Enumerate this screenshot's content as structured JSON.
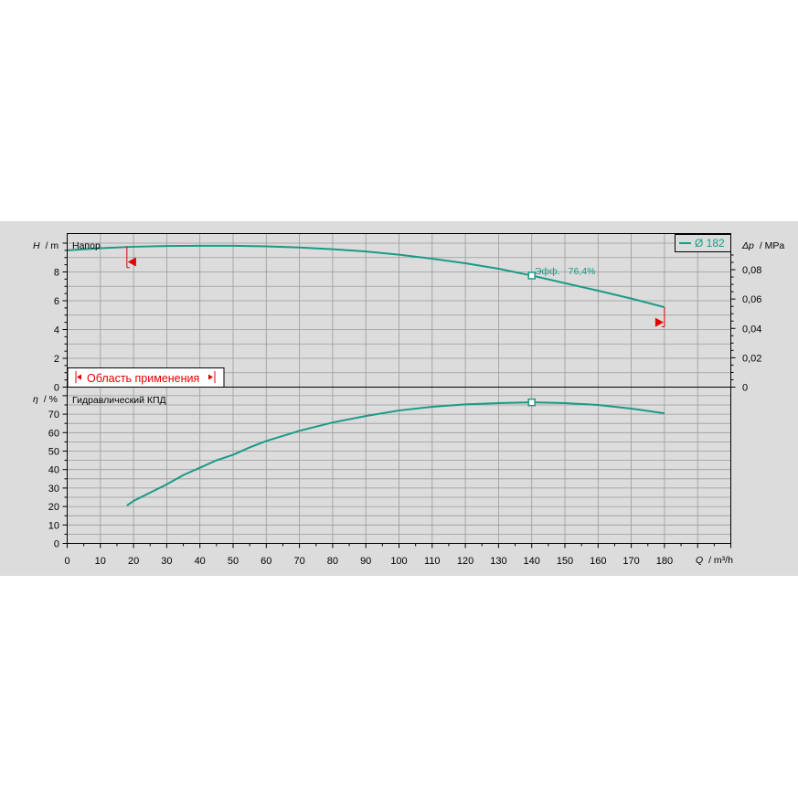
{
  "chart_data": [
    {
      "type": "line",
      "title": "Напор",
      "ylabel_italic": "H",
      "ylabel_unit": "/ m",
      "y2label_italic": "Δp",
      "y2label_unit": "/ MPa",
      "ylim": [
        0,
        10
      ],
      "yticks": [
        "0",
        "2",
        "4",
        "6",
        "8"
      ],
      "y2lim": [
        0,
        0.1
      ],
      "y2ticks": [
        "0",
        "0,02",
        "0,04",
        "0,06",
        "0,08"
      ],
      "series": [
        {
          "name": "Ø 182",
          "x": [
            0,
            10,
            20,
            30,
            40,
            50,
            60,
            70,
            80,
            90,
            100,
            110,
            120,
            130,
            140,
            150,
            160,
            170,
            180
          ],
          "y": [
            9.5,
            9.65,
            9.75,
            9.8,
            9.82,
            9.82,
            9.78,
            9.7,
            9.58,
            9.42,
            9.2,
            8.92,
            8.6,
            8.22,
            7.75,
            7.22,
            6.7,
            6.15,
            5.55
          ]
        }
      ],
      "annotations": {
        "efficiency_label": "Эфф.",
        "efficiency_value": "76,4%",
        "efficiency_point": {
          "x": 140,
          "y": 7.75
        },
        "operating_range_label": "Область применения",
        "range_start_x": 18,
        "range_end_x": 180,
        "range_marker_head_start": 8.7,
        "range_marker_head_end": 4.5
      },
      "legend_position": "top-right",
      "grid": true,
      "color": "#1a9a86"
    },
    {
      "type": "line",
      "title": "Гидравлический КПД",
      "ylabel_italic": "η",
      "ylabel_unit": "/ %",
      "ylim": [
        0,
        80
      ],
      "yticks": [
        "0",
        "10",
        "20",
        "30",
        "40",
        "50",
        "60",
        "70"
      ],
      "xlabel_italic": "Q",
      "xlabel_unit": "/ m³/h",
      "xlim": [
        0,
        200
      ],
      "xticks": [
        "0",
        "10",
        "20",
        "30",
        "40",
        "50",
        "60",
        "70",
        "80",
        "90",
        "100",
        "110",
        "120",
        "130",
        "140",
        "150",
        "160",
        "170",
        "180"
      ],
      "series": [
        {
          "x": [
            18,
            20,
            30,
            35,
            40,
            45,
            50,
            55,
            60,
            70,
            80,
            90,
            100,
            110,
            120,
            130,
            140,
            150,
            160,
            170,
            180
          ],
          "y": [
            20.5,
            23,
            32,
            37,
            41,
            45,
            48,
            52,
            55.5,
            61,
            65.5,
            69,
            72,
            74,
            75.3,
            76,
            76.4,
            76,
            75,
            73,
            70.5
          ]
        }
      ],
      "bep_point": {
        "x": 140,
        "y": 76.4
      },
      "grid": true,
      "color": "#1a9a86"
    }
  ]
}
